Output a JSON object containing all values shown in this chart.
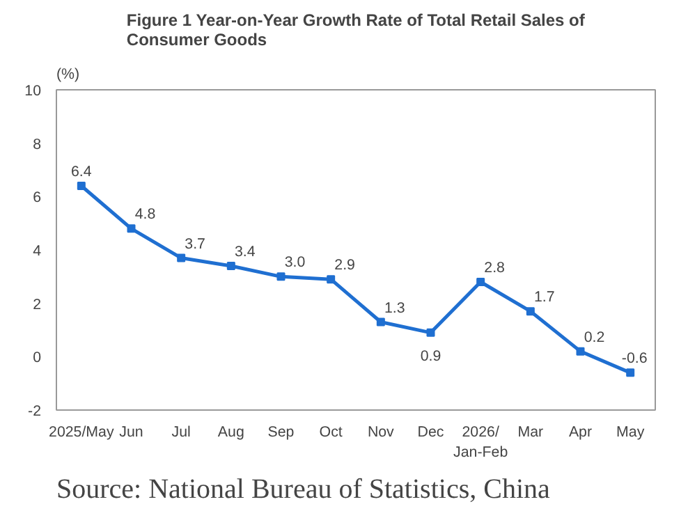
{
  "chart_data": {
    "type": "line",
    "title": "Figure 1 Year-on-Year Growth Rate of Total Retail Sales of\nConsumer Goods",
    "ylabel": "(%)",
    "categories": [
      "2025/May",
      "Jun",
      "Jul",
      "Aug",
      "Sep",
      "Oct",
      "Nov",
      "Dec",
      "2026/\nJan-Feb",
      "Mar",
      "Apr",
      "May"
    ],
    "series": [
      {
        "color": "#1f6fd1",
        "values": [
          6.4,
          4.8,
          3.7,
          3.4,
          3.0,
          2.9,
          1.3,
          0.9,
          2.8,
          1.7,
          0.2,
          -0.6
        ],
        "value_labels": [
          "6.4",
          "4.8",
          "3.7",
          "3.4",
          "3.0",
          "2.9",
          "1.3",
          "0.9",
          "2.8",
          "1.7",
          "0.2",
          "-0.6"
        ]
      }
    ],
    "ylim": [
      -2,
      10
    ],
    "yticks": [
      {
        "value": -2,
        "label": "-2"
      },
      0,
      2,
      4,
      6,
      8,
      10
    ],
    "grid": false,
    "marker": "square",
    "line_style": "solid",
    "annotations": [
      "Source: National Bureau of Statistics, China"
    ]
  }
}
